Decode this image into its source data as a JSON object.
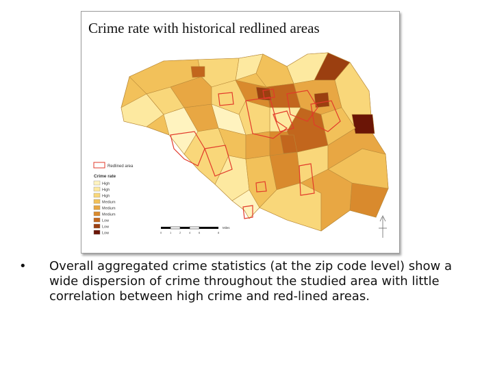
{
  "figure": {
    "title": "Crime rate with historical redlined areas",
    "legend": {
      "redlined_label": "Redlined area",
      "crime_heading": "Crime rate",
      "classes": [
        {
          "label": "High",
          "color": "#fff3bf"
        },
        {
          "label": "High",
          "color": "#fde9a0"
        },
        {
          "label": "High",
          "color": "#f9d77a"
        },
        {
          "label": "Medium",
          "color": "#f2c15a"
        },
        {
          "label": "Medium",
          "color": "#e8a743"
        },
        {
          "label": "Medium",
          "color": "#d98a2d"
        },
        {
          "label": "Low",
          "color": "#c2661d"
        },
        {
          "label": "Low",
          "color": "#9b3f10"
        },
        {
          "label": "Low",
          "color": "#6b1506"
        }
      ],
      "scale_labels": [
        "0",
        "1",
        "2",
        "4",
        "6",
        "8"
      ],
      "scale_unit": "Miles"
    },
    "redline_color": "#e23a2a",
    "north_symbol": "north-arrow"
  },
  "caption": {
    "bullet": "•",
    "text": "Overall aggregated crime statistics (at the zip code level) show a wide dispersion of crime throughout the studied area with little correlation between high crime and red-lined areas."
  }
}
